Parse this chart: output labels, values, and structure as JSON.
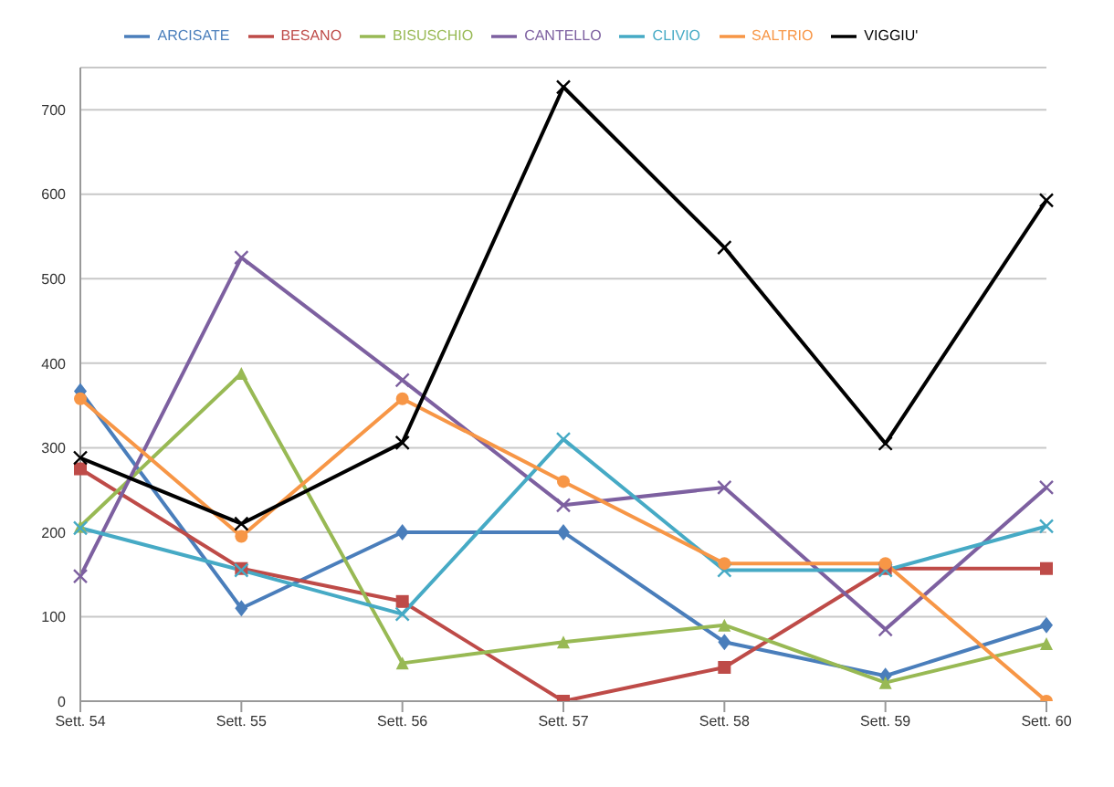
{
  "chart_data": {
    "type": "line",
    "categories": [
      "Sett. 54",
      "Sett. 55",
      "Sett. 56",
      "Sett. 57",
      "Sett. 58",
      "Sett. 59",
      "Sett. 60"
    ],
    "series": [
      {
        "name": "ARCISATE",
        "color": "#4a7ebb",
        "marker": "diamond",
        "values": [
          367,
          110,
          200,
          200,
          70,
          30,
          90
        ]
      },
      {
        "name": "BESANO",
        "color": "#be4b48",
        "marker": "square",
        "values": [
          275,
          157,
          118,
          0,
          40,
          157,
          157
        ]
      },
      {
        "name": "BISUSCHIO",
        "color": "#98b954",
        "marker": "triangle",
        "values": [
          207,
          388,
          45,
          70,
          90,
          22,
          68
        ]
      },
      {
        "name": "CANTELLO",
        "color": "#7d60a0",
        "marker": "cross",
        "values": [
          148,
          525,
          380,
          232,
          253,
          85,
          253
        ]
      },
      {
        "name": "CLIVIO",
        "color": "#46aac5",
        "marker": "cross",
        "values": [
          205,
          155,
          103,
          310,
          155,
          155,
          207
        ]
      },
      {
        "name": "SALTRIO",
        "color": "#f79646",
        "marker": "circle",
        "values": [
          358,
          195,
          358,
          260,
          163,
          163,
          0
        ]
      },
      {
        "name": "VIGGIU'",
        "color": "#000000",
        "marker": "cross",
        "values": [
          288,
          210,
          306,
          727,
          537,
          305,
          593
        ]
      }
    ],
    "ylim": [
      0,
      750
    ],
    "yticks": [
      0,
      100,
      200,
      300,
      400,
      500,
      600,
      700
    ],
    "grid": "y",
    "legend": "top"
  }
}
